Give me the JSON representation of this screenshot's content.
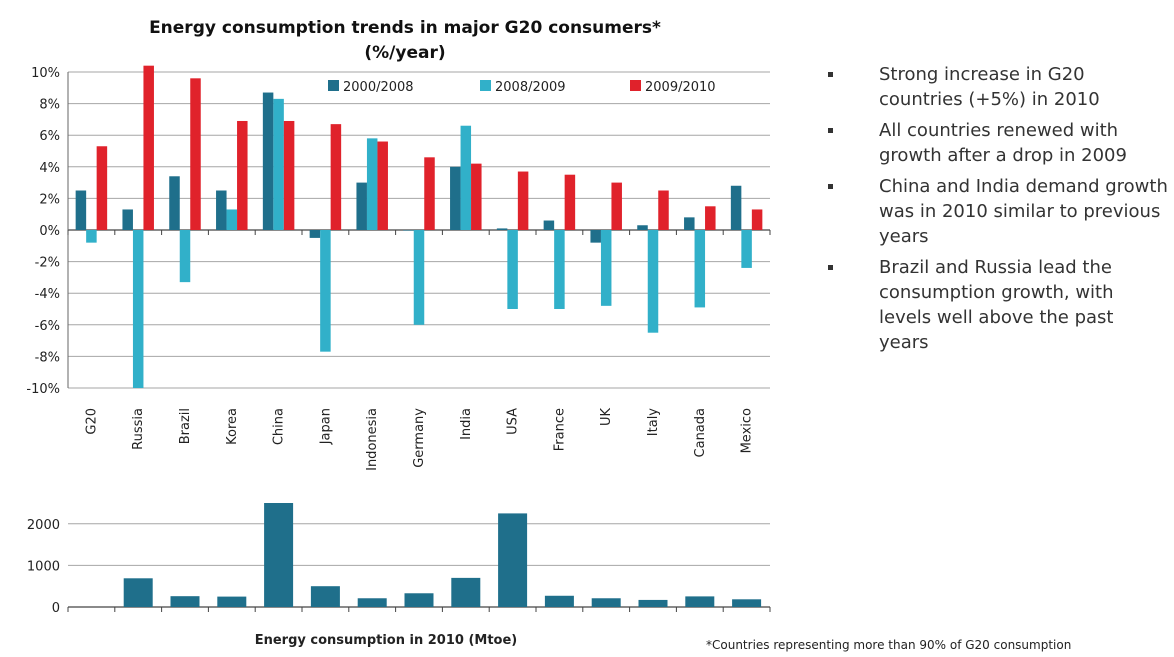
{
  "chart_data": [
    {
      "type": "bar",
      "title": "Energy consumption trends in major G20 consumers* (%/year)",
      "title_lines": [
        "Energy consumption trends in major G20 consumers*",
        "(%/year)"
      ],
      "categories": [
        "G20",
        "Russia",
        "Brazil",
        "Korea",
        "China",
        "Japan",
        "Indonesia",
        "Germany",
        "India",
        "USA",
        "France",
        "UK",
        "Italy",
        "Canada",
        "Mexico"
      ],
      "series": [
        {
          "name": "2000/2008",
          "color": "#1f6f8b",
          "values": [
            2.5,
            1.3,
            3.4,
            2.5,
            8.7,
            -0.5,
            3.0,
            0.0,
            4.0,
            0.1,
            0.6,
            -0.8,
            0.3,
            0.8,
            2.8
          ]
        },
        {
          "name": "2008/2009",
          "color": "#31b0c9",
          "values": [
            -0.8,
            -10.0,
            -3.3,
            1.3,
            8.3,
            -7.7,
            5.8,
            -6.0,
            6.6,
            -5.0,
            -5.0,
            -4.8,
            -6.5,
            -4.9,
            -2.4
          ]
        },
        {
          "name": "2009/2010",
          "color": "#e0222b",
          "values": [
            5.3,
            10.4,
            9.6,
            6.9,
            6.9,
            6.7,
            5.6,
            4.6,
            4.2,
            3.7,
            3.5,
            3.0,
            2.5,
            1.5,
            1.3
          ]
        }
      ],
      "ylim": [
        -10,
        10
      ],
      "yticks": [
        -10,
        -8,
        -6,
        -4,
        -2,
        0,
        2,
        4,
        6,
        8,
        10
      ],
      "ytick_labels": [
        "-10%",
        "-8%",
        "-6%",
        "-4%",
        "-2%",
        "0%",
        "2%",
        "4%",
        "6%",
        "8%",
        "10%"
      ],
      "grid": true,
      "legend_position": "top"
    },
    {
      "type": "bar",
      "title": "Energy consumption in 2010 (Mtoe)",
      "categories": [
        "G20",
        "Russia",
        "Brazil",
        "Korea",
        "China",
        "Japan",
        "Indonesia",
        "Germany",
        "India",
        "USA",
        "France",
        "UK",
        "Italy",
        "Canada",
        "Mexico"
      ],
      "values": [
        null,
        690,
        260,
        250,
        2500,
        500,
        210,
        330,
        700,
        2250,
        270,
        210,
        170,
        255,
        185
      ],
      "color": "#1f6f8b",
      "ylim": [
        0,
        2500
      ],
      "yticks": [
        0,
        1000,
        2000
      ],
      "ytick_labels": [
        "0",
        "1000",
        "2000"
      ],
      "grid": true
    }
  ],
  "bullets": [
    "Strong increase in G20 countries (+5%) in 2010",
    "All countries renewed with growth after a drop in 2009",
    "China and India demand growth was in 2010 similar to previous years",
    "Brazil and Russia lead the consumption growth, with levels well above the past years"
  ],
  "footnote": "*Countries representing more than 90% of G20 consumption"
}
